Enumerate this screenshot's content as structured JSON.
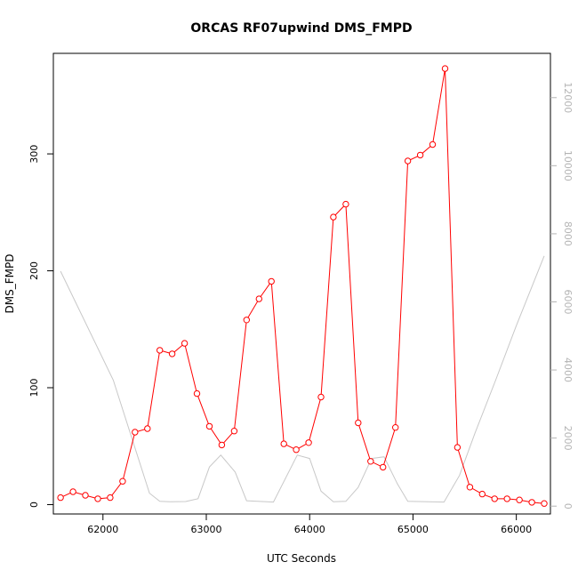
{
  "chart_data": {
    "type": "line",
    "title": "ORCAS RF07upwind DMS_FMPD",
    "xlabel": "UTC Seconds",
    "ylabel": "DMS_FMPD",
    "x_ticks": [
      62000,
      63000,
      64000,
      65000,
      66000
    ],
    "y_ticks": [
      0,
      100,
      200,
      300
    ],
    "y2_ticks": [
      0,
      2000,
      4000,
      6000,
      8000,
      10000,
      12000
    ],
    "xlim": [
      61520,
      66330
    ],
    "ylim": [
      -8,
      386
    ],
    "y2lim": [
      -230,
      13300
    ],
    "grid": false,
    "colors": {
      "primary": "#ff0000",
      "secondary": "#c8c8c8",
      "axis": "#000000",
      "axis2": "#b4b4b4"
    },
    "series": [
      {
        "axis": "left",
        "style": "line+points",
        "x": [
          61590,
          61710,
          61830,
          61950,
          62070,
          62190,
          62310,
          62430,
          62550,
          62670,
          62790,
          62910,
          63030,
          63150,
          63270,
          63390,
          63510,
          63630,
          63750,
          63870,
          63990,
          64110,
          64230,
          64350,
          64470,
          64590,
          64710,
          64830,
          64950,
          65070,
          65190,
          65310,
          65430,
          65550,
          65670,
          65790,
          65910,
          66030,
          66150,
          66270
        ],
        "values": [
          6,
          11,
          8,
          5,
          6,
          20,
          62,
          65,
          132,
          129,
          138,
          95,
          67,
          51,
          63,
          158,
          176,
          191,
          52,
          47,
          53,
          92,
          246,
          257,
          70,
          37,
          32,
          66,
          294,
          299,
          308,
          373,
          49,
          15,
          9,
          5,
          5,
          4,
          2,
          1
        ]
      },
      {
        "axis": "right",
        "style": "line",
        "x": [
          61590,
          62100,
          62450,
          62550,
          62650,
          62800,
          62920,
          63030,
          63140,
          63280,
          63390,
          63650,
          63880,
          64000,
          64110,
          64230,
          64350,
          64470,
          64600,
          64720,
          64850,
          64950,
          65300,
          65450,
          65600,
          65800,
          66000,
          66270
        ],
        "values": [
          6900,
          3700,
          380,
          140,
          130,
          135,
          220,
          1150,
          1500,
          1000,
          160,
          120,
          1500,
          1400,
          440,
          130,
          140,
          550,
          1400,
          1450,
          650,
          140,
          120,
          900,
          2150,
          3700,
          5300,
          7350
        ]
      }
    ]
  }
}
